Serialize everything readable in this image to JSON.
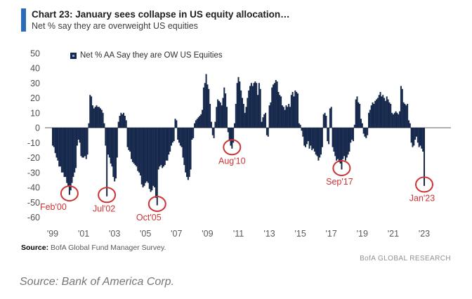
{
  "header": {
    "title": "Chart 23: January sees collapse in US equity allocation…",
    "subtitle": "Net % say they are overweight US equities",
    "accent_color": "#2A6CB8"
  },
  "chart_data": {
    "type": "bar",
    "legend": "Net % AA Say they are OW US Equities",
    "frequency": "monthly",
    "x_start": "1999-01",
    "x_end": "2023-01",
    "ylim": [
      -60,
      50
    ],
    "yticks": [
      50,
      40,
      30,
      20,
      10,
      0,
      -10,
      -20,
      -30,
      -40,
      -50,
      -60
    ],
    "xtick_labels": [
      "'99",
      "'01",
      "'03",
      "'05",
      "'07",
      "'09",
      "'11",
      "'13",
      "'15",
      "'17",
      "'19",
      "'21",
      "'23"
    ],
    "grid": false,
    "legend_position": "top",
    "bar_color": "#16294D",
    "axis_color": "#808080",
    "tick_color": "#4d4d4d",
    "annotation_color": "#CE3334",
    "values": [
      -12,
      -13,
      -17,
      -20,
      -22,
      -26,
      -26,
      -30,
      -30,
      -33,
      -33,
      -37,
      -39,
      -45,
      -42,
      -37,
      -33,
      -30,
      -27,
      -12,
      -8,
      -10,
      -19,
      -20,
      -20,
      -19,
      -21,
      -18,
      3,
      22,
      21,
      15,
      13,
      14,
      15,
      14,
      14,
      13,
      12,
      10,
      3,
      -12,
      -46,
      -18,
      -20,
      -24,
      -26,
      -33,
      -36,
      -34,
      -20,
      4,
      8,
      10,
      9,
      10,
      8,
      5,
      -13,
      -15,
      -16,
      -21,
      -23,
      -24,
      -25,
      -26,
      -29,
      -30,
      -32,
      -38,
      -40,
      -39,
      -37,
      -36,
      -37,
      -41,
      -43,
      -42,
      -39,
      -40,
      -47,
      -52,
      -28,
      -26,
      -25,
      -27,
      -26,
      -25,
      -22,
      -22,
      -18,
      -16,
      -12,
      -10,
      -9,
      6,
      5,
      -8,
      -10,
      -12,
      -13,
      -20,
      -25,
      -30,
      -33,
      -35,
      -33,
      -28,
      -8,
      -7,
      3,
      5,
      6,
      7,
      8,
      9,
      12,
      27,
      30,
      36,
      29,
      26,
      16,
      4,
      -5,
      -7,
      4,
      14,
      19,
      18,
      17,
      15,
      20,
      27,
      23,
      14,
      -3,
      -8,
      -12,
      -14,
      -10,
      3,
      16,
      30,
      34,
      31,
      25,
      20,
      16,
      10,
      14,
      20,
      25,
      28,
      30,
      28,
      30,
      31,
      30,
      22,
      30,
      26,
      4,
      7,
      9,
      10,
      -5,
      -6,
      15,
      17,
      27,
      29,
      30,
      32,
      31,
      24,
      22,
      21,
      15,
      14,
      12,
      15,
      14,
      16,
      14,
      22,
      24,
      21,
      25,
      24,
      23,
      3,
      2,
      -2,
      -6,
      -12,
      -13,
      -11,
      -9,
      -14,
      -12,
      -15,
      -14,
      -16,
      -18,
      -19,
      -22,
      -20,
      -18,
      -13,
      9,
      10,
      8,
      -9,
      -11,
      13,
      14,
      -13,
      -16,
      -19,
      -22,
      -21,
      -23,
      -24,
      -28,
      -21,
      -19,
      -22,
      -20,
      -18,
      -16,
      -10,
      -8,
      -9,
      2,
      19,
      21,
      17,
      16,
      6,
      3,
      -4,
      -6,
      -7,
      -5,
      10,
      12,
      15,
      17,
      16,
      18,
      19,
      20,
      22,
      24,
      21,
      22,
      20,
      18,
      21,
      19,
      17,
      16,
      10,
      9,
      10,
      11,
      10,
      9,
      11,
      28,
      26,
      17,
      16,
      15,
      16,
      5,
      3,
      -10,
      -13,
      -12,
      -8,
      -6,
      -10,
      -13,
      -12,
      -14,
      -16,
      -39
    ],
    "annotations": [
      {
        "label": "Feb'00",
        "month_index": 13,
        "value": -45,
        "label_dx": -23
      },
      {
        "label": "Jul'02",
        "month_index": 42,
        "value": -46,
        "label_dx": -4
      },
      {
        "label": "Oct'05",
        "month_index": 81,
        "value": -52,
        "label_dx": -12
      },
      {
        "label": "Aug'10",
        "month_index": 139,
        "value": -14,
        "label_dx": 0
      },
      {
        "label": "Sep'17",
        "month_index": 224,
        "value": -28,
        "label_dx": -3
      },
      {
        "label": "Jan'23",
        "month_index": 288,
        "value": -39,
        "label_dx": -3
      }
    ]
  },
  "footer": {
    "source_label": "Source:",
    "source_text": " BofA Global Fund Manager Survey.",
    "brand": "BofA GLOBAL RESEARCH"
  },
  "caption": {
    "text": "Source: Bank of America Corp."
  }
}
